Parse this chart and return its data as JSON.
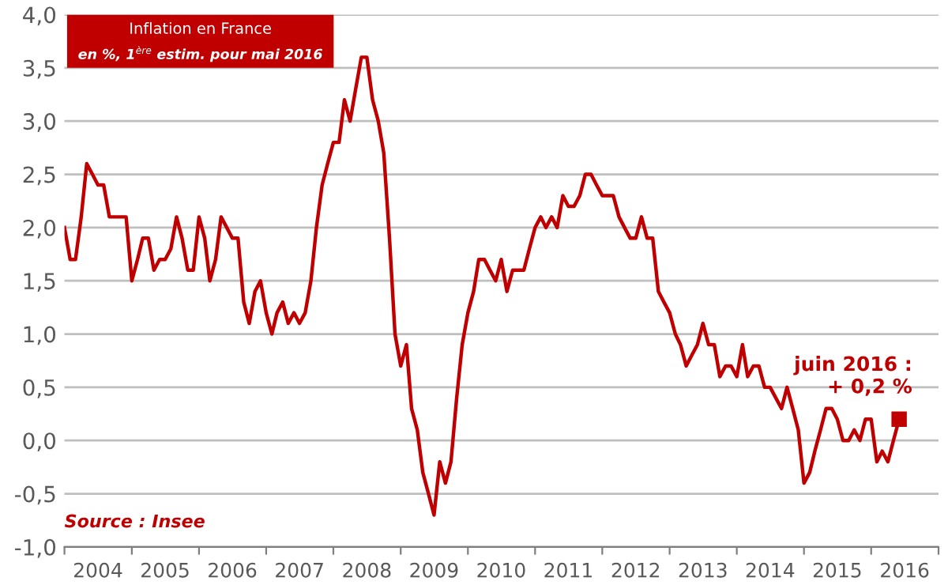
{
  "chart_data": {
    "type": "line",
    "title": "Inflation en France",
    "subtitle": "en %, 1$^{ère}$ estim. pour mai 2016",
    "x": [
      "2004-01",
      "2004-02",
      "2004-03",
      "2004-04",
      "2004-05",
      "2004-06",
      "2004-07",
      "2004-08",
      "2004-09",
      "2004-10",
      "2004-11",
      "2004-12",
      "2005-01",
      "2005-02",
      "2005-03",
      "2005-04",
      "2005-05",
      "2005-06",
      "2005-07",
      "2005-08",
      "2005-09",
      "2005-10",
      "2005-11",
      "2005-12",
      "2006-01",
      "2006-02",
      "2006-03",
      "2006-04",
      "2006-05",
      "2006-06",
      "2006-07",
      "2006-08",
      "2006-09",
      "2006-10",
      "2006-11",
      "2006-12",
      "2007-01",
      "2007-02",
      "2007-03",
      "2007-04",
      "2007-05",
      "2007-06",
      "2007-07",
      "2007-08",
      "2007-09",
      "2007-10",
      "2007-11",
      "2007-12",
      "2008-01",
      "2008-02",
      "2008-03",
      "2008-04",
      "2008-05",
      "2008-06",
      "2008-07",
      "2008-08",
      "2008-09",
      "2008-10",
      "2008-11",
      "2008-12",
      "2009-01",
      "2009-02",
      "2009-03",
      "2009-04",
      "2009-05",
      "2009-06",
      "2009-07",
      "2009-08",
      "2009-09",
      "2009-10",
      "2009-11",
      "2009-12",
      "2010-01",
      "2010-02",
      "2010-03",
      "2010-04",
      "2010-05",
      "2010-06",
      "2010-07",
      "2010-08",
      "2010-09",
      "2010-10",
      "2010-11",
      "2010-12",
      "2011-01",
      "2011-02",
      "2011-03",
      "2011-04",
      "2011-05",
      "2011-06",
      "2011-07",
      "2011-08",
      "2011-09",
      "2011-10",
      "2011-11",
      "2011-12",
      "2012-01",
      "2012-02",
      "2012-03",
      "2012-04",
      "2012-05",
      "2012-06",
      "2012-07",
      "2012-08",
      "2012-09",
      "2012-10",
      "2012-11",
      "2012-12",
      "2013-01",
      "2013-02",
      "2013-03",
      "2013-04",
      "2013-05",
      "2013-06",
      "2013-07",
      "2013-08",
      "2013-09",
      "2013-10",
      "2013-11",
      "2013-12",
      "2014-01",
      "2014-02",
      "2014-03",
      "2014-04",
      "2014-05",
      "2014-06",
      "2014-07",
      "2014-08",
      "2014-09",
      "2014-10",
      "2014-11",
      "2014-12",
      "2015-01",
      "2015-02",
      "2015-03",
      "2015-04",
      "2015-05",
      "2015-06",
      "2015-07",
      "2015-08",
      "2015-09",
      "2015-10",
      "2015-11",
      "2015-12",
      "2016-01",
      "2016-02",
      "2016-03",
      "2016-04",
      "2016-05",
      "2016-06"
    ],
    "series": [
      {
        "color": "#c00000",
        "values": [
          2.0,
          1.7,
          1.7,
          2.1,
          2.6,
          2.5,
          2.4,
          2.4,
          2.1,
          2.1,
          2.1,
          2.1,
          1.5,
          1.7,
          1.9,
          1.9,
          1.6,
          1.7,
          1.7,
          1.8,
          2.1,
          1.9,
          1.6,
          1.6,
          2.1,
          1.9,
          1.5,
          1.7,
          2.1,
          2.0,
          1.9,
          1.9,
          1.3,
          1.1,
          1.4,
          1.5,
          1.2,
          1.0,
          1.2,
          1.3,
          1.1,
          1.2,
          1.1,
          1.2,
          1.5,
          2.0,
          2.4,
          2.6,
          2.8,
          2.8,
          3.2,
          3.0,
          3.3,
          3.6,
          3.6,
          3.2,
          3.0,
          2.7,
          1.9,
          1.0,
          0.7,
          0.9,
          0.3,
          0.1,
          -0.3,
          -0.5,
          -0.7,
          -0.2,
          -0.4,
          -0.2,
          0.4,
          0.9,
          1.2,
          1.4,
          1.7,
          1.7,
          1.6,
          1.5,
          1.7,
          1.4,
          1.6,
          1.6,
          1.6,
          1.8,
          2.0,
          2.1,
          2.0,
          2.1,
          2.0,
          2.3,
          2.2,
          2.2,
          2.3,
          2.5,
          2.5,
          2.4,
          2.3,
          2.3,
          2.3,
          2.1,
          2.0,
          1.9,
          1.9,
          2.1,
          1.9,
          1.9,
          1.4,
          1.3,
          1.2,
          1.0,
          0.9,
          0.7,
          0.8,
          0.9,
          1.1,
          0.9,
          0.9,
          0.6,
          0.7,
          0.7,
          0.6,
          0.9,
          0.6,
          0.7,
          0.7,
          0.5,
          0.5,
          0.4,
          0.3,
          0.5,
          0.3,
          0.1,
          -0.4,
          -0.3,
          -0.1,
          0.1,
          0.3,
          0.3,
          0.2,
          0.0,
          0.0,
          0.1,
          0.0,
          0.2,
          0.2,
          -0.2,
          -0.1,
          -0.2,
          0.0,
          0.2
        ]
      }
    ],
    "xlim": [
      "2004-01-01",
      "2017-01-01"
    ],
    "xticks": [
      {
        "value": "2004-01-01",
        "label": null
      },
      {
        "value": "2004-07-01",
        "label": "2004"
      },
      {
        "value": "2005-01-01",
        "label": null
      },
      {
        "value": "2005-07-01",
        "label": "2005"
      },
      {
        "value": "2006-01-01",
        "label": null
      },
      {
        "value": "2006-07-01",
        "label": "2006"
      },
      {
        "value": "2007-01-01",
        "label": null
      },
      {
        "value": "2007-07-01",
        "label": "2007"
      },
      {
        "value": "2008-01-01",
        "label": null
      },
      {
        "value": "2008-07-01",
        "label": "2008"
      },
      {
        "value": "2009-01-01",
        "label": null
      },
      {
        "value": "2009-07-01",
        "label": "2009"
      },
      {
        "value": "2010-01-01",
        "label": null
      },
      {
        "value": "2010-07-01",
        "label": "2010"
      },
      {
        "value": "2011-01-01",
        "label": null
      },
      {
        "value": "2011-07-01",
        "label": "2011"
      },
      {
        "value": "2012-01-01",
        "label": null
      },
      {
        "value": "2012-07-01",
        "label": "2012"
      },
      {
        "value": "2013-01-01",
        "label": null
      },
      {
        "value": "2013-07-01",
        "label": "2013"
      },
      {
        "value": "2014-01-01",
        "label": null
      },
      {
        "value": "2014-07-01",
        "label": "2014"
      },
      {
        "value": "2015-01-01",
        "label": null
      },
      {
        "value": "2015-07-01",
        "label": "2015"
      },
      {
        "value": "2016-01-01",
        "label": null
      },
      {
        "value": "2016-07-01",
        "label": "2016"
      },
      {
        "value": "2017-01-01",
        "label": null
      }
    ],
    "ylim": [
      -1.0,
      4.0
    ],
    "yticks": [
      {
        "value": -1.0,
        "label": "-1,0"
      },
      {
        "value": -0.5,
        "label": "-0,5"
      },
      {
        "value": 0.0,
        "label": "0,0"
      },
      {
        "value": 0.5,
        "label": "0,5"
      },
      {
        "value": 1.0,
        "label": "1,0"
      },
      {
        "value": 1.5,
        "label": "1,5"
      },
      {
        "value": 2.0,
        "label": "2,0"
      },
      {
        "value": 2.5,
        "label": "2,5"
      },
      {
        "value": 3.0,
        "label": "3,0"
      },
      {
        "value": 3.5,
        "label": "3,5"
      },
      {
        "value": 4.0,
        "label": "4,0"
      }
    ],
    "grid": "y",
    "marker": "none",
    "line_style": "solid",
    "annotations": [
      {
        "text": "juin 2016 :\n+ 0,2 %",
        "x": "2016-06",
        "y": 0.2
      },
      "Source : Insee"
    ]
  }
}
